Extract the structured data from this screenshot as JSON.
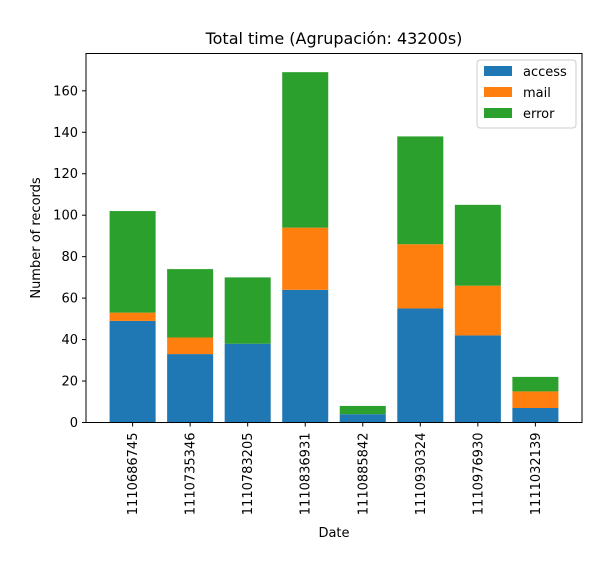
{
  "chart_data": {
    "type": "bar",
    "stacked": true,
    "title": "Total time (Agrupación: 43200s)",
    "xlabel": "Date",
    "ylabel": "Number of records",
    "categories": [
      "1110686745",
      "1110735346",
      "1110783205",
      "1110836931",
      "1110885842",
      "1110930324",
      "1110976930",
      "1111032139"
    ],
    "series": [
      {
        "name": "access",
        "color": "#1f77b4",
        "values": [
          49,
          33,
          38,
          64,
          4,
          55,
          42,
          7
        ]
      },
      {
        "name": "mail",
        "color": "#ff7f0e",
        "values": [
          4,
          8,
          0,
          30,
          0,
          31,
          24,
          8
        ]
      },
      {
        "name": "error",
        "color": "#2ca02c",
        "values": [
          49,
          33,
          32,
          75,
          4,
          52,
          39,
          7
        ]
      }
    ],
    "ylim": [
      0,
      178
    ],
    "yticks": [
      0,
      20,
      40,
      60,
      80,
      100,
      120,
      140,
      160
    ],
    "grid": false,
    "legend_position": "top-right"
  }
}
